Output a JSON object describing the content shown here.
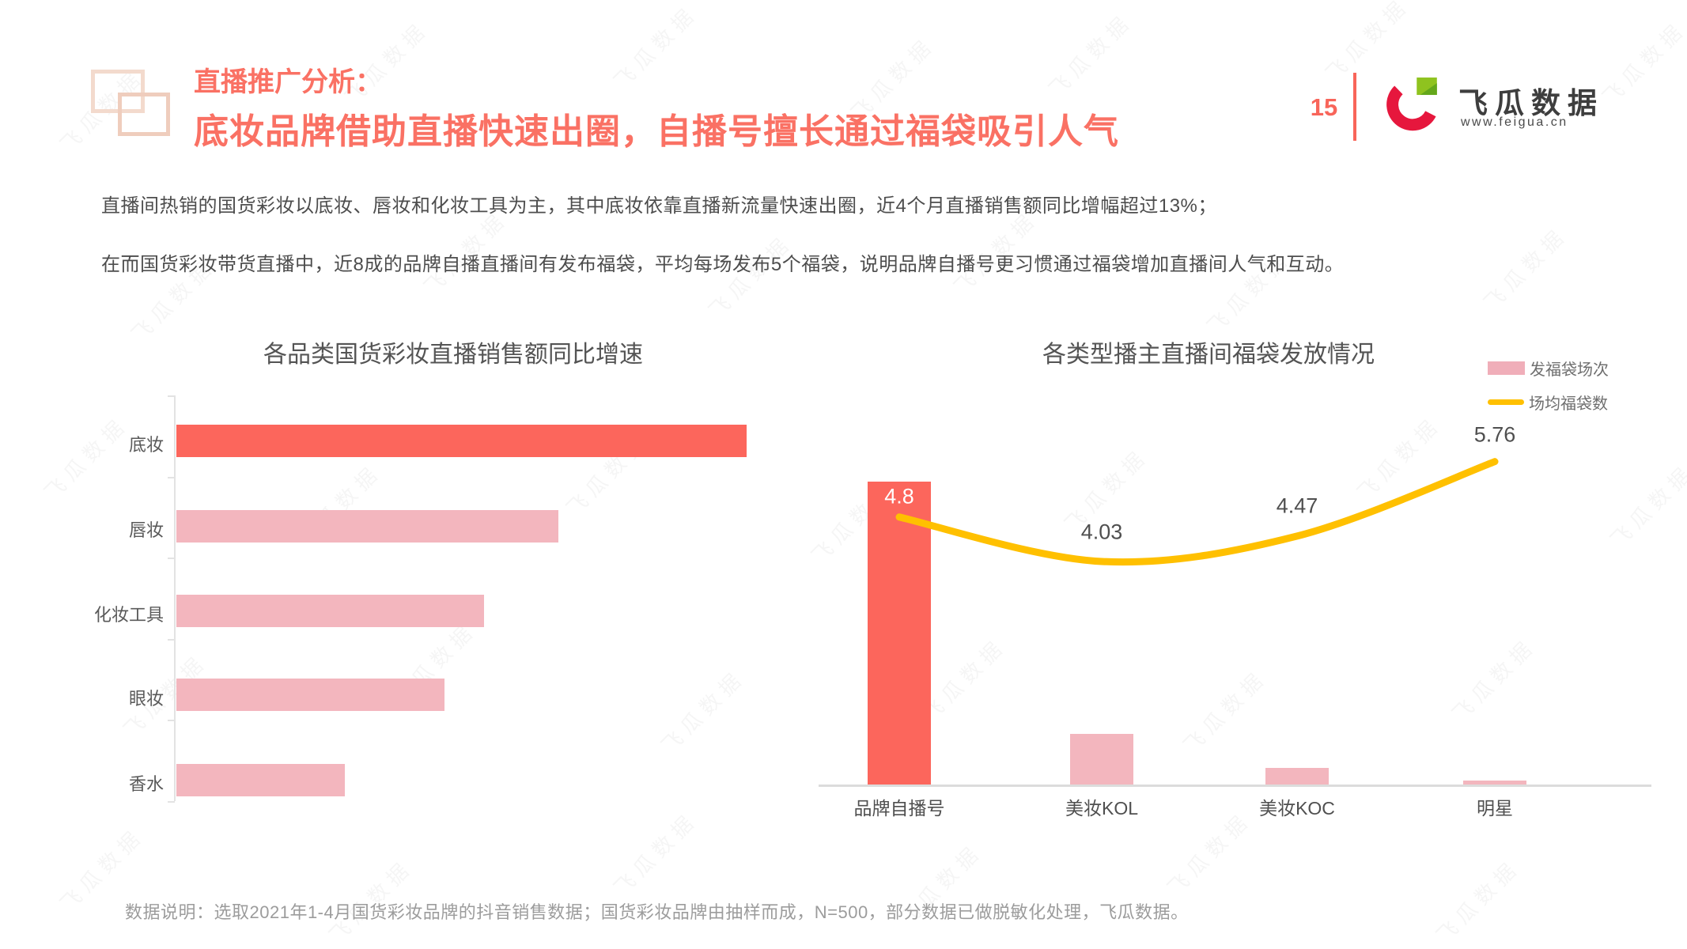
{
  "header": {
    "section_label": "直播推广分析：",
    "title": "底妆品牌借助直播快速出圈，自播号擅长通过福袋吸引人气",
    "page_number": "15"
  },
  "logo": {
    "name": "飞瓜数据",
    "url": "www.feigua.cn"
  },
  "intro": {
    "paragraph1": "直播间热销的国货彩妆以底妆、唇妆和化妆工具为主，其中底妆依靠直播新流量快速出圈，近4个月直播销售额同比增幅超过13%；",
    "paragraph2": "在而国货彩妆带货直播中，近8成的品牌自播直播间有发布福袋，平均每场发布5个福袋，说明品牌自播号更习惯通过福袋增加直播间人气和互动。"
  },
  "chart_data": [
    {
      "type": "bar",
      "orientation": "horizontal",
      "title": "各品类国货彩妆直播销售额同比增速",
      "categories": [
        "底妆",
        "唇妆",
        "化妆工具",
        "眼妆",
        "香水"
      ],
      "values_pct_of_max_est": [
        100,
        67,
        54,
        47,
        29.5
      ],
      "value_labels_shown": false,
      "highlight_index": 0,
      "grid": false,
      "legend": "none"
    },
    {
      "type": "bar",
      "combo": "bar+line",
      "title": "各类型播主直播间福袋发放情况",
      "categories": [
        "品牌自播号",
        "美妆KOL",
        "美妆KOC",
        "明星"
      ],
      "series": [
        {
          "name": "发福袋场次",
          "type": "bar",
          "values_pct_of_max_est": [
            100,
            17,
            5.7,
            1.6
          ],
          "value_labels_shown": false
        },
        {
          "name": "场均福袋数",
          "type": "line",
          "values": [
            4.8,
            4.03,
            4.47,
            5.76
          ],
          "point_labels": [
            "4.8",
            "4.03",
            "4.47",
            "5.76"
          ]
        }
      ],
      "grid": false,
      "legend_position": "top-right"
    }
  ],
  "footer": {
    "note": "数据说明：选取2021年1-4月国货彩妆品牌的抖音销售数据；国货彩妆品牌由抽样而成，N=500，部分数据已做脱敏化处理，飞瓜数据。"
  },
  "watermark": {
    "text": "飞瓜数据"
  },
  "colors": {
    "accent_coral": "#FA7164",
    "bar_highlight": "#FC665C",
    "bar_pink": "#F3B6BE",
    "line_yellow": "#FFC000",
    "page_number_red": "#F8655A",
    "logo_red": "#E6173D",
    "logo_green": "#8FC31F",
    "logo_green_dark": "#64A71B"
  }
}
